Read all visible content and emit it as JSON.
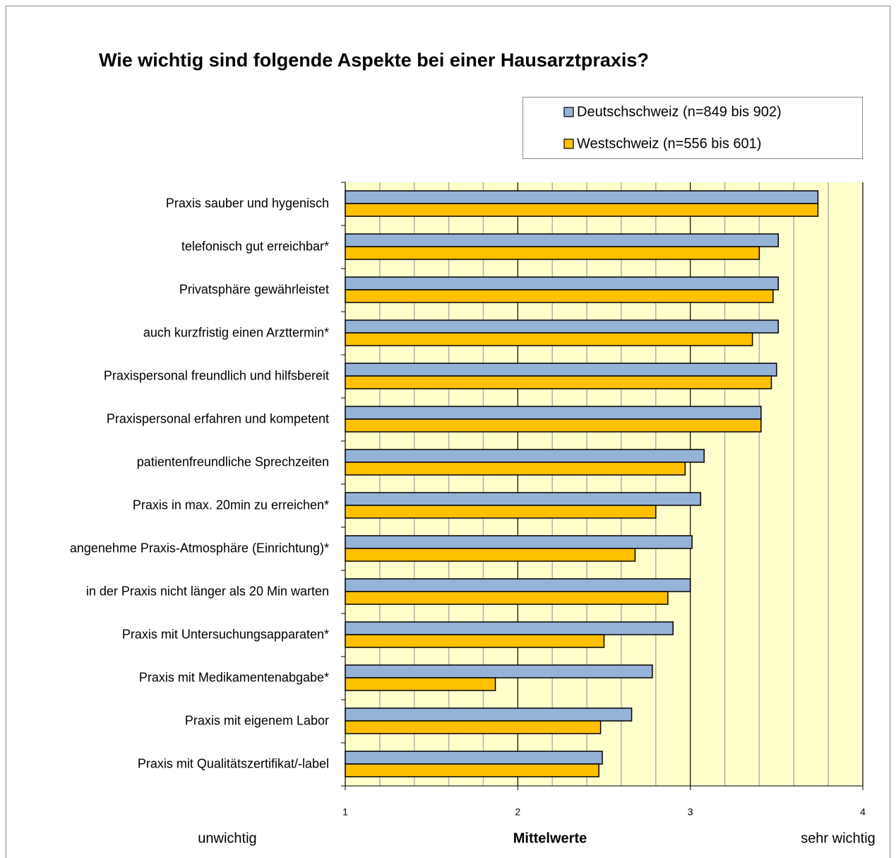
{
  "chart_data": {
    "type": "hbar",
    "title": "Wie wichtig sind folgende Aspekte bei einer Hausarztpraxis?",
    "xlabel": "Mittelwerte",
    "annotations": [
      "unwichtig",
      "sehr wichtig"
    ],
    "categories": [
      "Praxis sauber und hygenisch",
      "telefonisch gut erreichbar*",
      "Privatsphäre gewährleistet",
      "auch kurzfristig einen Arzttermin*",
      "Praxispersonal freundlich und hilfsbereit",
      "Praxispersonal erfahren und kompetent",
      "patientenfreundliche Sprechzeiten",
      "Praxis in max. 20min zu erreichen*",
      "angenehme Praxis-Atmosphäre (Einrichtung)*",
      "in der Praxis nicht länger als 20 Min warten",
      "Praxis mit Untersuchungsapparaten*",
      "Praxis mit Medikamentenabgabe*",
      "Praxis mit eigenem Labor",
      "Praxis mit Qualitätszertifikat/-label"
    ],
    "series": [
      {
        "name": "Deutschschweiz (n=849 bis 902)",
        "color": "#95b3d7",
        "values": [
          3.74,
          3.51,
          3.51,
          3.51,
          3.5,
          3.41,
          3.08,
          3.06,
          3.01,
          3.0,
          2.9,
          2.78,
          2.66,
          2.49
        ]
      },
      {
        "name": "Westschweiz (n=556 bis 601)",
        "color": "#ffc000",
        "values": [
          3.74,
          3.4,
          3.48,
          3.36,
          3.47,
          3.41,
          2.97,
          2.8,
          2.68,
          2.87,
          2.5,
          1.87,
          2.48,
          2.47
        ]
      }
    ],
    "xlim": [
      1,
      4
    ],
    "xticks": [
      1,
      2,
      3,
      4
    ],
    "xminorticks": [
      1.2,
      1.4,
      1.6,
      1.8,
      2.2,
      2.4,
      2.6,
      2.8,
      3.2,
      3.4,
      3.6,
      3.8
    ],
    "grid": true,
    "plot_background": "#ffffcc",
    "legend": "top-right"
  }
}
